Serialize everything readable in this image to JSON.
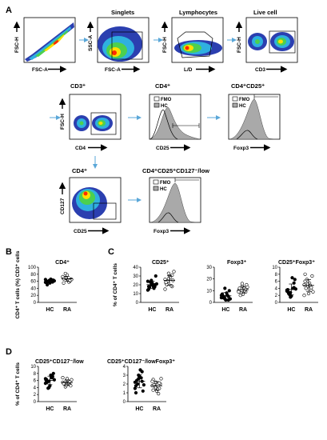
{
  "figure": {
    "panel_labels": [
      "A",
      "B",
      "C",
      "D"
    ],
    "colors": {
      "arrow": "#5aa7d8",
      "hc_fill": "#a9a9a9",
      "fmo_line": "#000000"
    },
    "flow_panels": [
      {
        "id": "p1",
        "title": "",
        "xlabel": "FSC-A",
        "ylabel": "FSC-H"
      },
      {
        "id": "p2",
        "title": "Singlets",
        "xlabel": "FSC-A",
        "ylabel": "SSC-A"
      },
      {
        "id": "p3",
        "title": "Lymphocytes",
        "xlabel": "L/D",
        "ylabel": "FSC-H"
      },
      {
        "id": "p4",
        "title": "Live cell",
        "xlabel": "CD3",
        "ylabel": "FSC-H"
      },
      {
        "id": "p5",
        "title": "CD3⁺",
        "xlabel": "CD4",
        "ylabel": "FSC-H"
      },
      {
        "id": "p6",
        "title": "CD4⁺",
        "xlabel": "CD25",
        "ylabel": ""
      },
      {
        "id": "p7",
        "title": "CD4⁺CD25⁺",
        "xlabel": "Foxp3",
        "ylabel": ""
      },
      {
        "id": "p8",
        "title": "CD4⁺",
        "xlabel": "CD25",
        "ylabel": "CD127"
      },
      {
        "id": "p9",
        "title": "CD4⁺CD25⁺CD127⁻/low",
        "xlabel": "Foxp3",
        "ylabel": ""
      }
    ],
    "histogram_legend": [
      "FMO",
      "HC"
    ]
  },
  "chart_data": [
    {
      "type": "scatter",
      "panel": "B",
      "title": "CD4⁺",
      "ylabel": "CD4⁺ T cells (%) CD3⁺ cells",
      "ylim": [
        0,
        100
      ],
      "yticks": [
        0,
        20,
        40,
        60,
        80,
        100
      ],
      "categories": [
        "HC",
        "RA"
      ],
      "series": [
        {
          "name": "HC",
          "values": [
            65,
            62,
            58,
            60,
            55,
            63,
            50,
            66,
            61,
            59,
            64,
            57,
            60,
            62,
            58
          ]
        },
        {
          "name": "RA",
          "values": [
            72,
            68,
            60,
            55,
            78,
            66,
            70,
            63,
            65,
            82,
            58,
            73,
            69,
            62,
            67
          ]
        }
      ]
    },
    {
      "type": "scatter",
      "panel": "C",
      "title": "CD25⁺",
      "ylabel": "% of CD4⁺ T cells",
      "ylim": [
        0,
        40
      ],
      "yticks": [
        0,
        10,
        20,
        30,
        40
      ],
      "categories": [
        "HC",
        "RA"
      ],
      "series": [
        {
          "name": "HC",
          "values": [
            24,
            20,
            18,
            15,
            22,
            30,
            17,
            19,
            21,
            23,
            16,
            14,
            25,
            20,
            18
          ]
        },
        {
          "name": "RA",
          "values": [
            26,
            33,
            18,
            22,
            30,
            25,
            20,
            28,
            35,
            24,
            19,
            15,
            27,
            31,
            23
          ]
        }
      ]
    },
    {
      "type": "scatter",
      "panel": "C",
      "title": "Foxp3⁺",
      "ylabel": "",
      "ylim": [
        0,
        30
      ],
      "yticks": [
        0,
        10,
        20,
        30
      ],
      "categories": [
        "HC",
        "RA"
      ],
      "series": [
        {
          "name": "HC",
          "values": [
            6,
            3,
            5,
            7,
            2,
            10,
            4,
            8,
            3,
            5,
            6,
            4,
            12,
            2,
            7
          ]
        },
        {
          "name": "RA",
          "values": [
            10,
            14,
            9,
            11,
            7,
            15,
            6,
            12,
            13,
            8,
            10,
            9,
            16,
            11,
            12
          ]
        }
      ]
    },
    {
      "type": "scatter",
      "panel": "C",
      "title": "CD25⁺Foxp3⁺",
      "ylabel": "",
      "ylim": [
        0,
        10
      ],
      "yticks": [
        0,
        2,
        4,
        6,
        8,
        10
      ],
      "categories": [
        "HC",
        "RA"
      ],
      "series": [
        {
          "name": "HC",
          "values": [
            3.5,
            2.8,
            4.2,
            3.0,
            1.8,
            6.5,
            2.5,
            7.0,
            3.8,
            2.2,
            4.0,
            3.2,
            1.5,
            5.5,
            3.6
          ]
        },
        {
          "name": "RA",
          "values": [
            5.0,
            4.5,
            3.5,
            6.0,
            2.5,
            7.5,
            4.0,
            5.5,
            3.0,
            6.5,
            4.8,
            2.0,
            5.2,
            4.2,
            8.0
          ]
        }
      ]
    },
    {
      "type": "scatter",
      "panel": "D",
      "title": "CD25⁺CD127⁻/low",
      "ylabel": "% of CD4⁺ T cells",
      "ylim": [
        0,
        10
      ],
      "yticks": [
        0,
        2,
        4,
        6,
        8,
        10
      ],
      "categories": [
        "HC",
        "RA"
      ],
      "series": [
        {
          "name": "HC",
          "values": [
            6.5,
            5.8,
            7.2,
            6.0,
            4.5,
            8.0,
            5.5,
            7.5,
            6.2,
            3.8,
            6.8,
            5.2,
            4.0,
            7.0,
            6.3
          ]
        },
        {
          "name": "RA",
          "values": [
            5.5,
            6.0,
            4.8,
            5.2,
            6.5,
            4.5,
            5.0,
            5.8,
            6.2,
            4.2,
            5.4,
            6.8,
            4.6,
            5.6,
            5.1
          ]
        }
      ]
    },
    {
      "type": "scatter",
      "panel": "D",
      "title": "CD25⁺CD127⁻/lowFoxp3⁺",
      "ylabel": "",
      "ylim": [
        0,
        4
      ],
      "yticks": [
        0,
        1,
        2,
        3,
        4
      ],
      "categories": [
        "HC",
        "RA"
      ],
      "series": [
        {
          "name": "HC",
          "values": [
            2.2,
            2.6,
            3.4,
            1.8,
            2.9,
            1.2,
            2.4,
            3.6,
            1.9,
            2.0,
            2.7,
            1.5,
            3.0,
            2.3,
            1.0
          ]
        },
        {
          "name": "RA",
          "values": [
            1.8,
            2.2,
            1.5,
            2.5,
            1.2,
            2.0,
            1.9,
            1.4,
            2.6,
            1.7,
            0.9,
            2.3,
            1.6,
            2.1,
            1.3
          ]
        }
      ]
    }
  ]
}
